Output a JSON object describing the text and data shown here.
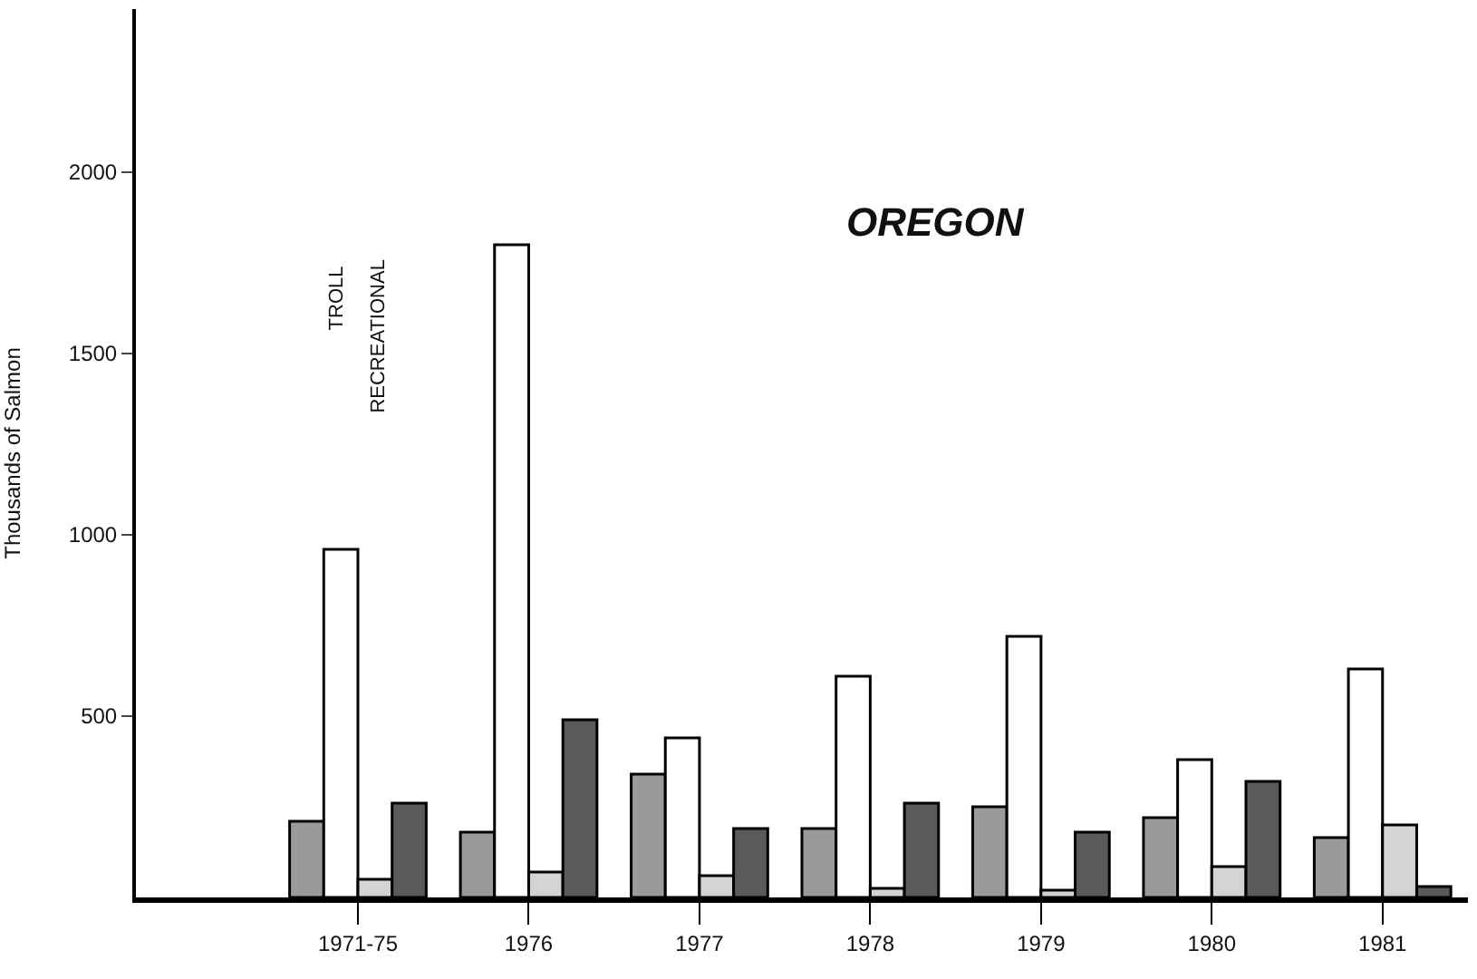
{
  "chart_data": {
    "type": "bar",
    "title": "OREGON",
    "ylabel": "Thousands of Salmon",
    "categories": [
      "1971-75",
      "1976",
      "1977",
      "1978",
      "1979",
      "1980",
      "1981"
    ],
    "series": [
      {
        "color": "#9a9a9a",
        "values": [
          210,
          180,
          340,
          190,
          250,
          220,
          165
        ]
      },
      {
        "color": "#ffffff",
        "values": [
          960,
          1800,
          440,
          610,
          720,
          380,
          630
        ]
      },
      {
        "color": "#d4d4d4",
        "values": [
          50,
          70,
          60,
          25,
          20,
          85,
          200
        ]
      },
      {
        "color": "#5a5a5a",
        "values": [
          260,
          490,
          190,
          260,
          180,
          320,
          30
        ]
      }
    ],
    "annotations": [
      "TROLL",
      "RECREATIONAL"
    ],
    "ylim": [
      0,
      2450
    ],
    "yticks": [
      500,
      1000,
      1500,
      2000
    ]
  }
}
